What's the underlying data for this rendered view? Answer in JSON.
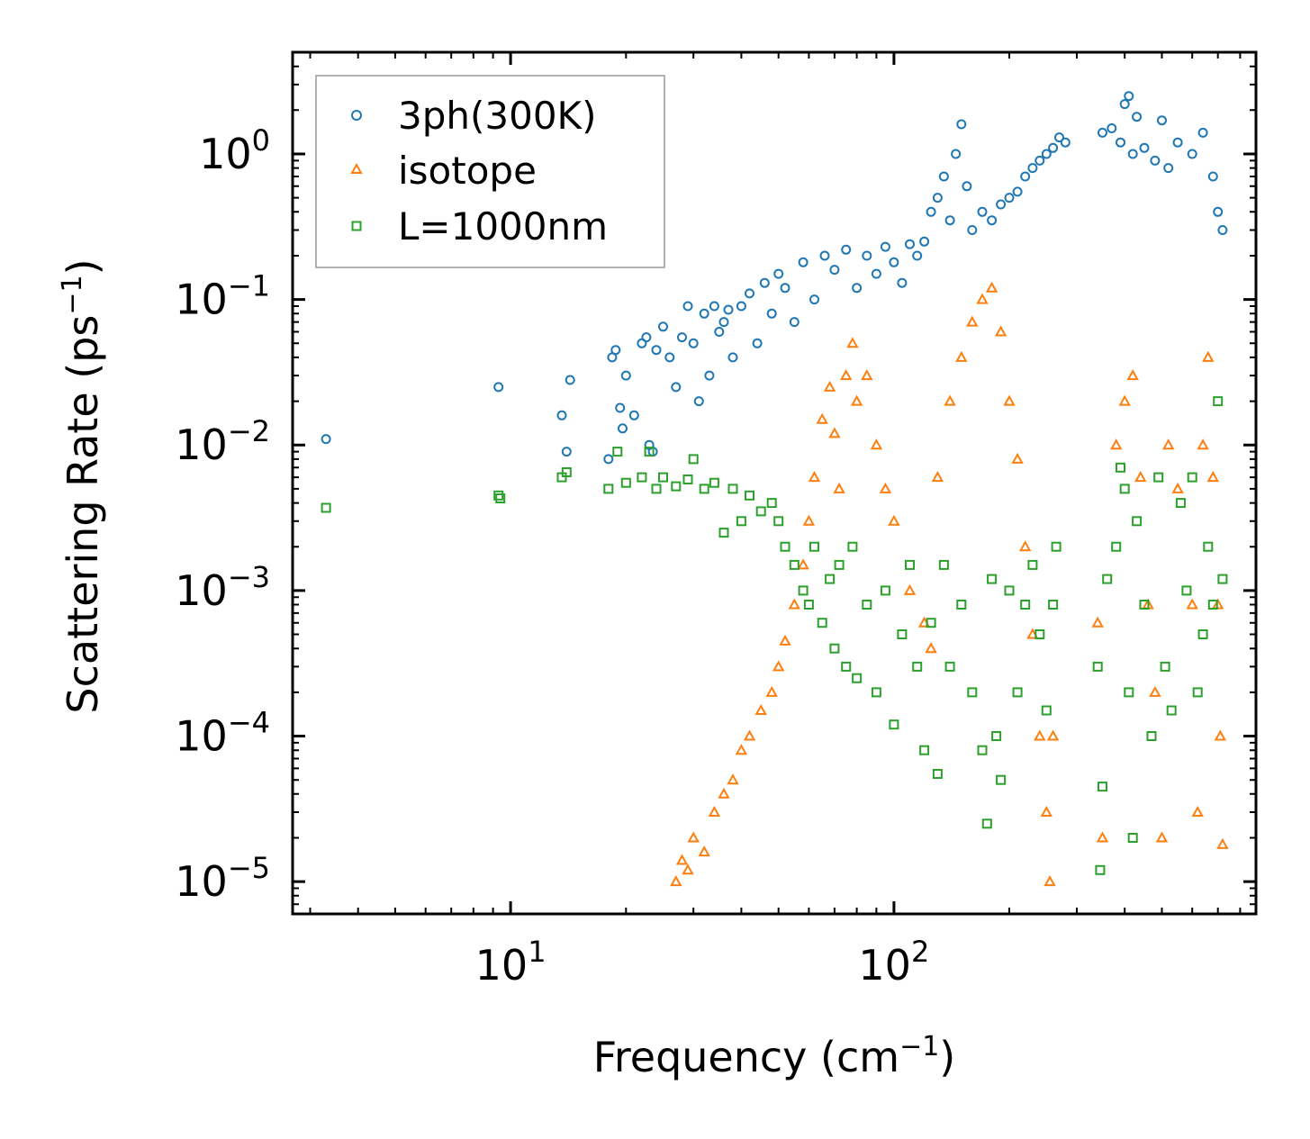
{
  "chart_data": {
    "type": "scatter",
    "title": "",
    "xlabel": "Frequency (cm",
    "xlabel_sup": "−1",
    "xlabel_end": ")",
    "ylabel": "Scattering Rate (ps",
    "ylabel_sup": "−1",
    "ylabel_end": ")",
    "xscale": "log",
    "yscale": "log",
    "xlim": [
      2.7,
      880
    ],
    "ylim": [
      6e-06,
      5
    ],
    "x_ticks": [
      {
        "base": "10",
        "exp": "1",
        "value": 10
      },
      {
        "base": "10",
        "exp": "2",
        "value": 100
      }
    ],
    "y_ticks": [
      {
        "base": "10",
        "exp": "0",
        "value": 1
      },
      {
        "base": "10",
        "exp": "−1",
        "value": 0.1
      },
      {
        "base": "10",
        "exp": "−2",
        "value": 0.01
      },
      {
        "base": "10",
        "exp": "−3",
        "value": 0.001
      },
      {
        "base": "10",
        "exp": "−4",
        "value": 0.0001
      },
      {
        "base": "10",
        "exp": "−5",
        "value": 1e-05
      }
    ],
    "legend_position": "top-left",
    "series": [
      {
        "name": "3ph(300K)",
        "marker": "circle",
        "color": "#1f77b4",
        "points": [
          [
            3.3,
            0.011
          ],
          [
            9.3,
            0.025
          ],
          [
            13.6,
            0.016
          ],
          [
            14,
            0.009
          ],
          [
            14.3,
            0.028
          ],
          [
            18,
            0.008
          ],
          [
            18.4,
            0.04
          ],
          [
            18.8,
            0.045
          ],
          [
            19.3,
            0.018
          ],
          [
            19.6,
            0.013
          ],
          [
            20,
            0.03
          ],
          [
            21,
            0.016
          ],
          [
            22,
            0.05
          ],
          [
            22.6,
            0.055
          ],
          [
            23,
            0.01
          ],
          [
            23.5,
            0.009
          ],
          [
            24,
            0.045
          ],
          [
            25,
            0.065
          ],
          [
            26,
            0.04
          ],
          [
            27,
            0.025
          ],
          [
            28,
            0.055
          ],
          [
            29,
            0.09
          ],
          [
            30,
            0.05
          ],
          [
            31,
            0.02
          ],
          [
            32,
            0.08
          ],
          [
            33,
            0.03
          ],
          [
            34,
            0.09
          ],
          [
            35,
            0.06
          ],
          [
            36,
            0.07
          ],
          [
            37,
            0.085
          ],
          [
            38,
            0.04
          ],
          [
            40,
            0.09
          ],
          [
            42,
            0.11
          ],
          [
            44,
            0.05
          ],
          [
            46,
            0.13
          ],
          [
            48,
            0.08
          ],
          [
            50,
            0.15
          ],
          [
            52,
            0.12
          ],
          [
            55,
            0.07
          ],
          [
            58,
            0.18
          ],
          [
            62,
            0.1
          ],
          [
            66,
            0.2
          ],
          [
            70,
            0.16
          ],
          [
            75,
            0.22
          ],
          [
            80,
            0.12
          ],
          [
            85,
            0.2
          ],
          [
            90,
            0.15
          ],
          [
            95,
            0.23
          ],
          [
            100,
            0.18
          ],
          [
            105,
            0.13
          ],
          [
            110,
            0.24
          ],
          [
            115,
            0.2
          ],
          [
            120,
            0.25
          ],
          [
            125,
            0.4
          ],
          [
            130,
            0.5
          ],
          [
            135,
            0.7
          ],
          [
            140,
            0.35
          ],
          [
            145,
            1.0
          ],
          [
            150,
            1.6
          ],
          [
            155,
            0.6
          ],
          [
            160,
            0.3
          ],
          [
            170,
            0.4
          ],
          [
            180,
            0.35
          ],
          [
            190,
            0.45
          ],
          [
            200,
            0.5
          ],
          [
            210,
            0.55
          ],
          [
            220,
            0.7
          ],
          [
            230,
            0.8
          ],
          [
            240,
            0.9
          ],
          [
            250,
            1.0
          ],
          [
            260,
            1.1
          ],
          [
            270,
            1.3
          ],
          [
            280,
            1.2
          ],
          [
            350,
            1.4
          ],
          [
            370,
            1.5
          ],
          [
            390,
            1.2
          ],
          [
            400,
            2.2
          ],
          [
            410,
            2.5
          ],
          [
            420,
            1.0
          ],
          [
            430,
            1.8
          ],
          [
            450,
            1.1
          ],
          [
            480,
            0.9
          ],
          [
            500,
            1.7
          ],
          [
            520,
            0.8
          ],
          [
            550,
            1.2
          ],
          [
            600,
            1.0
          ],
          [
            640,
            1.4
          ],
          [
            680,
            0.7
          ],
          [
            700,
            0.4
          ],
          [
            720,
            0.3
          ]
        ]
      },
      {
        "name": "isotope",
        "marker": "triangle",
        "color": "#ff7f0e",
        "points": [
          [
            27,
            1e-05
          ],
          [
            28,
            1.4e-05
          ],
          [
            29,
            1.2e-05
          ],
          [
            30,
            2e-05
          ],
          [
            32,
            1.6e-05
          ],
          [
            34,
            3e-05
          ],
          [
            36,
            4e-05
          ],
          [
            38,
            5e-05
          ],
          [
            40,
            8e-05
          ],
          [
            42,
            0.0001
          ],
          [
            45,
            0.00015
          ],
          [
            48,
            0.0002
          ],
          [
            50,
            0.0003
          ],
          [
            52,
            0.00045
          ],
          [
            55,
            0.0008
          ],
          [
            58,
            0.0015
          ],
          [
            60,
            0.003
          ],
          [
            62,
            0.006
          ],
          [
            65,
            0.015
          ],
          [
            68,
            0.025
          ],
          [
            70,
            0.012
          ],
          [
            72,
            0.005
          ],
          [
            75,
            0.03
          ],
          [
            78,
            0.05
          ],
          [
            80,
            0.02
          ],
          [
            85,
            0.03
          ],
          [
            90,
            0.01
          ],
          [
            95,
            0.005
          ],
          [
            100,
            0.003
          ],
          [
            110,
            0.001
          ],
          [
            120,
            0.0006
          ],
          [
            125,
            0.0004
          ],
          [
            130,
            0.006
          ],
          [
            140,
            0.02
          ],
          [
            150,
            0.04
          ],
          [
            160,
            0.07
          ],
          [
            170,
            0.1
          ],
          [
            180,
            0.12
          ],
          [
            190,
            0.06
          ],
          [
            200,
            0.02
          ],
          [
            210,
            0.008
          ],
          [
            220,
            0.002
          ],
          [
            230,
            0.0005
          ],
          [
            240,
            0.0001
          ],
          [
            250,
            3e-05
          ],
          [
            255,
            1e-05
          ],
          [
            260,
            0.0001
          ],
          [
            340,
            0.0006
          ],
          [
            350,
            2e-05
          ],
          [
            380,
            0.01
          ],
          [
            400,
            0.02
          ],
          [
            420,
            0.03
          ],
          [
            440,
            0.006
          ],
          [
            460,
            0.0008
          ],
          [
            480,
            0.0002
          ],
          [
            500,
            2e-05
          ],
          [
            520,
            0.01
          ],
          [
            550,
            0.005
          ],
          [
            600,
            0.0008
          ],
          [
            620,
            3e-05
          ],
          [
            640,
            0.01
          ],
          [
            660,
            0.04
          ],
          [
            680,
            0.006
          ],
          [
            700,
            0.0008
          ],
          [
            710,
            0.0001
          ],
          [
            720,
            1.8e-05
          ]
        ]
      },
      {
        "name": "L=1000nm",
        "marker": "square",
        "color": "#2ca02c",
        "points": [
          [
            3.3,
            0.0037
          ],
          [
            9.3,
            0.0045
          ],
          [
            9.4,
            0.0043
          ],
          [
            13.6,
            0.006
          ],
          [
            14,
            0.0065
          ],
          [
            18,
            0.005
          ],
          [
            19,
            0.009
          ],
          [
            20,
            0.0055
          ],
          [
            22,
            0.006
          ],
          [
            23,
            0.009
          ],
          [
            24,
            0.005
          ],
          [
            25,
            0.006
          ],
          [
            27,
            0.0052
          ],
          [
            29,
            0.0058
          ],
          [
            30,
            0.008
          ],
          [
            32,
            0.005
          ],
          [
            34,
            0.0055
          ],
          [
            36,
            0.0025
          ],
          [
            38,
            0.005
          ],
          [
            40,
            0.003
          ],
          [
            42,
            0.0045
          ],
          [
            45,
            0.0035
          ],
          [
            48,
            0.004
          ],
          [
            50,
            0.003
          ],
          [
            52,
            0.002
          ],
          [
            55,
            0.0015
          ],
          [
            58,
            0.001
          ],
          [
            60,
            0.0008
          ],
          [
            62,
            0.002
          ],
          [
            65,
            0.0006
          ],
          [
            68,
            0.0012
          ],
          [
            70,
            0.0004
          ],
          [
            72,
            0.0015
          ],
          [
            75,
            0.0003
          ],
          [
            78,
            0.002
          ],
          [
            80,
            0.00025
          ],
          [
            85,
            0.0008
          ],
          [
            90,
            0.0002
          ],
          [
            95,
            0.001
          ],
          [
            100,
            0.00012
          ],
          [
            105,
            0.0005
          ],
          [
            110,
            0.0015
          ],
          [
            115,
            0.0003
          ],
          [
            120,
            8e-05
          ],
          [
            125,
            0.0006
          ],
          [
            130,
            5.5e-05
          ],
          [
            135,
            0.0015
          ],
          [
            140,
            0.0003
          ],
          [
            150,
            0.0008
          ],
          [
            160,
            0.0002
          ],
          [
            170,
            8e-05
          ],
          [
            175,
            2.5e-05
          ],
          [
            180,
            0.0012
          ],
          [
            185,
            0.0001
          ],
          [
            190,
            5e-05
          ],
          [
            200,
            0.001
          ],
          [
            210,
            0.0002
          ],
          [
            220,
            0.0008
          ],
          [
            230,
            0.0015
          ],
          [
            240,
            0.0005
          ],
          [
            250,
            0.00015
          ],
          [
            260,
            0.0008
          ],
          [
            265,
            0.002
          ],
          [
            340,
            0.0003
          ],
          [
            345,
            1.2e-05
          ],
          [
            350,
            4.5e-05
          ],
          [
            360,
            0.0012
          ],
          [
            380,
            0.002
          ],
          [
            390,
            0.007
          ],
          [
            400,
            0.005
          ],
          [
            410,
            0.0002
          ],
          [
            420,
            2e-05
          ],
          [
            430,
            0.003
          ],
          [
            450,
            0.0008
          ],
          [
            470,
            0.0001
          ],
          [
            490,
            0.006
          ],
          [
            510,
            0.0003
          ],
          [
            530,
            0.00015
          ],
          [
            560,
            0.004
          ],
          [
            580,
            0.001
          ],
          [
            600,
            0.006
          ],
          [
            620,
            0.0002
          ],
          [
            640,
            0.0005
          ],
          [
            660,
            0.002
          ],
          [
            680,
            0.0008
          ],
          [
            700,
            0.02
          ],
          [
            720,
            0.0012
          ]
        ]
      }
    ]
  }
}
